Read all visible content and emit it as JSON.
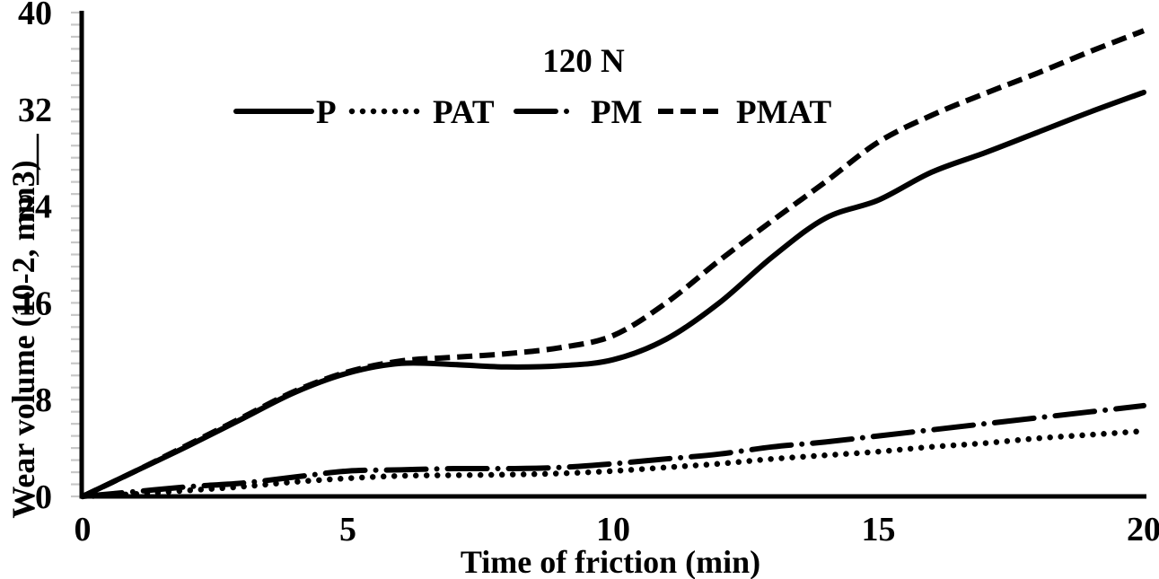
{
  "title": "120 N",
  "colors": {
    "series_line": "#000000",
    "axis_line": "#000000",
    "minor_tick": "#c8c8c8",
    "text": "#000000",
    "background": "#ffffff"
  },
  "axes": {
    "x": {
      "title": "Time of friction (min)",
      "min": 0,
      "max": 20,
      "ticks": [
        0,
        5,
        10,
        15,
        20
      ]
    },
    "y": {
      "title": "Wear volume (10-2, mm3)",
      "min": 0,
      "max": 40,
      "ticks": [
        0,
        8,
        16,
        24,
        32,
        40
      ],
      "minor_tick_step": 1
    }
  },
  "chart_data": {
    "type": "line",
    "title": "120 N",
    "xlabel": "Time of friction (min)",
    "ylabel": "Wear volume (10-2, mm3)",
    "xlim": [
      0,
      20
    ],
    "ylim": [
      0,
      40
    ],
    "grid": false,
    "legend_position": "top-center",
    "x": [
      0,
      1,
      2,
      3,
      4,
      5,
      6,
      7,
      8,
      9,
      10,
      11,
      12,
      13,
      14,
      15,
      16,
      17,
      18,
      19,
      20
    ],
    "series": [
      {
        "name": "P",
        "style": "solid",
        "values": [
          0,
          2.1,
          4.2,
          6.4,
          8.6,
          10.2,
          11.0,
          10.9,
          10.7,
          10.8,
          11.3,
          13.0,
          16.0,
          19.8,
          23.0,
          24.5,
          26.8,
          28.4,
          30.1,
          31.8,
          33.4
        ]
      },
      {
        "name": "PAT",
        "style": "dotted",
        "values": [
          0,
          0.2,
          0.5,
          0.8,
          1.2,
          1.5,
          1.7,
          1.75,
          1.8,
          1.9,
          2.1,
          2.4,
          2.7,
          3.1,
          3.4,
          3.7,
          4.1,
          4.4,
          4.8,
          5.1,
          5.4
        ]
      },
      {
        "name": "PM",
        "style": "long-dash-dot",
        "values": [
          0,
          0.4,
          0.8,
          1.1,
          1.6,
          2.1,
          2.2,
          2.3,
          2.3,
          2.4,
          2.7,
          3.1,
          3.5,
          4.1,
          4.5,
          5.0,
          5.5,
          6.0,
          6.5,
          7.0,
          7.5
        ]
      },
      {
        "name": "PMAT",
        "style": "dashed",
        "values": [
          0,
          2.1,
          4.3,
          6.5,
          8.7,
          10.3,
          11.2,
          11.5,
          11.8,
          12.3,
          13.3,
          16.0,
          19.5,
          22.8,
          26.0,
          29.3,
          31.5,
          33.3,
          35.0,
          36.8,
          38.5
        ]
      }
    ]
  }
}
